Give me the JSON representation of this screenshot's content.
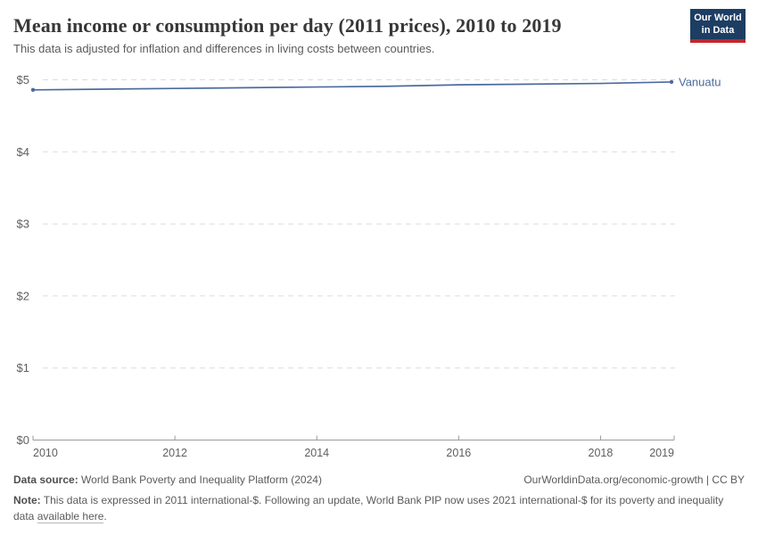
{
  "header": {
    "title": "Mean income or consumption per day (2011 prices), 2010 to 2019",
    "subtitle": "This data is adjusted for inflation and differences in living costs between countries.",
    "logo_line1": "Our World",
    "logo_line2": "in Data"
  },
  "chart_data": {
    "type": "line",
    "title": "Mean income or consumption per day (2011 prices), 2010 to 2019",
    "x": [
      2010,
      2011,
      2012,
      2013,
      2014,
      2015,
      2016,
      2017,
      2018,
      2019
    ],
    "series": [
      {
        "name": "Vanuatu",
        "values": [
          4.86,
          4.87,
          4.88,
          4.89,
          4.9,
          4.91,
          4.93,
          4.94,
          4.95,
          4.97
        ]
      }
    ],
    "x_ticks": [
      2010,
      2012,
      2014,
      2016,
      2018,
      2019
    ],
    "y_ticks": [
      {
        "value": 0,
        "label": "$0"
      },
      {
        "value": 1,
        "label": "$1"
      },
      {
        "value": 2,
        "label": "$2"
      },
      {
        "value": 3,
        "label": "$3"
      },
      {
        "value": 4,
        "label": "$4"
      },
      {
        "value": 5,
        "label": "$5"
      }
    ],
    "ylim": [
      0,
      5
    ],
    "xlabel": "",
    "ylabel": "",
    "grid": "horizontal-dashed",
    "legend_position": "end-of-line-label",
    "line_color": "#4c6a9e",
    "grid_color": "#dcdcdc",
    "axis_color": "#9a9a9a",
    "tick_label_color": "#5f5f5f"
  },
  "footer": {
    "source_label": "Data source:",
    "source_text": " World Bank Poverty and Inequality Platform (2024)",
    "url": "OurWorldinData.org/economic-growth",
    "license_sep": " | ",
    "license": "CC BY",
    "note_label": "Note:",
    "note_text": " This data is expressed in 2011 international-$. Following an update, World Bank PIP now uses 2021 international-$ for its poverty and inequality data ",
    "note_link": "available here",
    "note_suffix": "."
  }
}
